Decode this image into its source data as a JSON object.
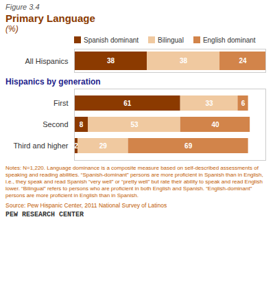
{
  "chart_data": [
    {
      "type": "bar",
      "orientation": "horizontal",
      "stacked": true,
      "data_labels": true,
      "tick_labels": "y",
      "figure_label": "Figure 3.4",
      "title": "Primary Language",
      "subtitle": "(%)",
      "categories": [
        "All Hispanics"
      ],
      "series": [
        {
          "name": "Spanish dominant",
          "color": "#8B3A00",
          "values": [
            38
          ]
        },
        {
          "name": "Bilingual",
          "color": "#F0C9A0",
          "values": [
            38
          ]
        },
        {
          "name": "English dominant",
          "color": "#D2844A",
          "values": [
            24
          ]
        }
      ],
      "xlim": [
        0,
        100
      ],
      "legend": "top"
    },
    {
      "type": "bar",
      "orientation": "horizontal",
      "stacked": true,
      "data_labels": true,
      "tick_labels": "y",
      "title": "Hispanics by generation",
      "categories": [
        "First",
        "Second",
        "Third and higher"
      ],
      "series": [
        {
          "name": "Spanish dominant",
          "color": "#8B3A00",
          "values": [
            61,
            8,
            2
          ]
        },
        {
          "name": "Bilingual",
          "color": "#F0C9A0",
          "values": [
            33,
            53,
            29
          ]
        },
        {
          "name": "English dominant",
          "color": "#D2844A",
          "values": [
            6,
            40,
            69
          ]
        }
      ],
      "xlim": [
        0,
        110
      ],
      "notes": "Notes: N=1,220.  Language dominance is a composite measure based on self-described assessments of speaking and reading abilities. “Spanish-dominant” persons are more proficient in Spanish than in English, i.e., they speak and read Spanish “very well” or “pretty well” but rate their ability to speak and read English lower. “Bilingual” refers to persons who are proficient in both English and Spanish. “English-dominant” persons are more proficient in English than in Spanish.",
      "source": "Source: Pew Hispanic Center, 2011 National Survey of Latinos",
      "footer": "PEW RESEARCH CENTER"
    }
  ]
}
